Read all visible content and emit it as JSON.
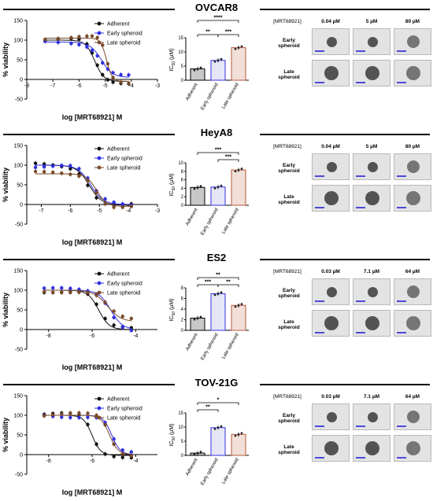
{
  "colors": {
    "adherent": "#111111",
    "early": "#3030e0",
    "late": "#7a4a2a",
    "late_bar_edge": "#b85a3a"
  },
  "ic50_axis_label_main": "IC",
  "ic50_axis_label_sub": "50",
  "ic50_axis_label_unit": " (µM)",
  "viability_label": "% viability",
  "xlabel": "log [MRT68921] M",
  "legend": [
    "Adherent",
    "Early spheroid",
    "Late spheroid"
  ],
  "bar_categories": [
    "Adherent",
    "Early spheroid",
    "Late spheroid"
  ],
  "micro_row_labels": [
    [
      "Early",
      "spheroid"
    ],
    [
      "Late",
      "spheroid"
    ]
  ],
  "panels": [
    {
      "title": "OVCAR8",
      "curve": {
        "type": "scatter",
        "xlim": [
          -8,
          -3
        ],
        "ylim": [
          -50,
          150
        ],
        "yticks": [
          -50,
          0,
          50,
          100,
          150
        ],
        "xticks": [
          -8,
          -7,
          -6,
          -5,
          -4,
          -3
        ],
        "series": [
          {
            "name": "Adherent",
            "ic50": -5.4,
            "top": 100,
            "bottom": -5,
            "hill": 2.5
          },
          {
            "name": "Early spheroid",
            "ic50": -5.15,
            "top": 95,
            "bottom": 5,
            "hill": 2
          },
          {
            "name": "Late spheroid",
            "ic50": -4.95,
            "top": 105,
            "bottom": -5,
            "hill": 4
          }
        ],
        "xpoints": [
          -7.3,
          -6.8,
          -6.3,
          -6.0,
          -5.7,
          -5.5,
          -5.3,
          -5.1,
          -4.9,
          -4.7,
          -4.4,
          -4.1
        ]
      },
      "bars": {
        "values": [
          4,
          7,
          11.5
        ],
        "ylim": [
          0,
          15
        ],
        "yticks": [
          0,
          5,
          10,
          15
        ],
        "sig": [
          {
            "from": 0,
            "to": 2,
            "label": "****",
            "level": 3
          },
          {
            "from": 0,
            "to": 1,
            "label": "**",
            "level": 1
          },
          {
            "from": 1,
            "to": 2,
            "label": "***",
            "level": 1
          }
        ]
      },
      "micro": {
        "header": "[MRT68921]",
        "doses": [
          "0.04 µM",
          "5 µM",
          "80 µM"
        ]
      }
    },
    {
      "title": "HeyA8",
      "curve": {
        "type": "scatter",
        "xlim": [
          -7.5,
          -3
        ],
        "ylim": [
          -50,
          150
        ],
        "yticks": [
          -50,
          0,
          50,
          100,
          150
        ],
        "xticks": [
          -7,
          -6,
          -5,
          -4,
          -3
        ],
        "series": [
          {
            "name": "Adherent",
            "ic50": -5.35,
            "top": 100,
            "bottom": -2,
            "hill": 2
          },
          {
            "name": "Early spheroid",
            "ic50": -5.3,
            "top": 100,
            "bottom": 0,
            "hill": 2
          },
          {
            "name": "Late spheroid",
            "ic50": -5.1,
            "top": 78,
            "bottom": -5,
            "hill": 2.5
          }
        ],
        "xpoints": [
          -7.2,
          -6.9,
          -6.6,
          -6.3,
          -6.0,
          -5.7,
          -5.4,
          -5.1,
          -4.8,
          -4.5,
          -4.2,
          -3.9
        ]
      },
      "bars": {
        "values": [
          4.2,
          4.3,
          8.3
        ],
        "ylim": [
          0,
          10
        ],
        "yticks": [
          0,
          2,
          4,
          6,
          8,
          10
        ],
        "sig": [
          {
            "from": 0,
            "to": 2,
            "label": "***",
            "level": 2
          },
          {
            "from": 1,
            "to": 2,
            "label": "***",
            "level": 1
          }
        ]
      },
      "micro": {
        "header": "[MRT68921]",
        "doses": [
          "0.04 µM",
          "5 µM",
          "80 µM"
        ]
      }
    },
    {
      "title": "ES2",
      "curve": {
        "type": "scatter",
        "xlim": [
          -9,
          -3
        ],
        "ylim": [
          -50,
          150
        ],
        "yticks": [
          -50,
          0,
          50,
          100,
          150
        ],
        "xticks": [
          -8,
          -6,
          -4
        ],
        "series": [
          {
            "name": "Adherent",
            "ic50": -5.7,
            "top": 100,
            "bottom": 0,
            "hill": 1.8
          },
          {
            "name": "Early spheroid",
            "ic50": -5.15,
            "top": 100,
            "bottom": 0,
            "hill": 1.6
          },
          {
            "name": "Late spheroid",
            "ic50": -5.3,
            "top": 100,
            "bottom": 20,
            "hill": 1.4
          }
        ],
        "xpoints": [
          -8.2,
          -7.8,
          -7.4,
          -7.0,
          -6.6,
          -6.2,
          -5.8,
          -5.4,
          -5.0,
          -4.6,
          -4.2
        ]
      },
      "bars": {
        "values": [
          2.3,
          6.9,
          4.7
        ],
        "ylim": [
          0,
          8
        ],
        "yticks": [
          0,
          2,
          4,
          6,
          8
        ],
        "sig": [
          {
            "from": 0,
            "to": 2,
            "label": "**",
            "level": 2
          },
          {
            "from": 0,
            "to": 1,
            "label": "***",
            "level": 1
          },
          {
            "from": 1,
            "to": 2,
            "label": "**",
            "level": 1
          }
        ]
      },
      "micro": {
        "header": "[MRT68921]",
        "doses": [
          "0.03 µM",
          "7.1 µM",
          "64 µM"
        ]
      }
    },
    {
      "title": "TOV-21G",
      "curve": {
        "type": "scatter",
        "xlim": [
          -9,
          -3
        ],
        "ylim": [
          -50,
          150
        ],
        "yticks": [
          -50,
          0,
          50,
          100,
          150
        ],
        "xticks": [
          -8,
          -6,
          -4
        ],
        "series": [
          {
            "name": "Adherent",
            "ic50": -6.0,
            "top": 100,
            "bottom": -2,
            "hill": 2.2
          },
          {
            "name": "Early spheroid",
            "ic50": -5.1,
            "top": 100,
            "bottom": 0,
            "hill": 2.2
          },
          {
            "name": "Late spheroid",
            "ic50": -5.2,
            "top": 100,
            "bottom": 0,
            "hill": 2.2
          }
        ],
        "xpoints": [
          -8.2,
          -7.8,
          -7.4,
          -7.0,
          -6.6,
          -6.2,
          -5.8,
          -5.4,
          -5.0,
          -4.6,
          -4.2
        ]
      },
      "bars": {
        "values": [
          0.8,
          9.8,
          7.4
        ],
        "ylim": [
          0,
          15
        ],
        "yticks": [
          0,
          5,
          10,
          15
        ],
        "sig": [
          {
            "from": 0,
            "to": 2,
            "label": "*",
            "level": 2
          },
          {
            "from": 0,
            "to": 1,
            "label": "**",
            "level": 1
          }
        ]
      },
      "micro": {
        "header": "[MRT68921]",
        "doses": [
          "0.03 µM",
          "7.1 µM",
          "64 µM"
        ]
      }
    }
  ]
}
